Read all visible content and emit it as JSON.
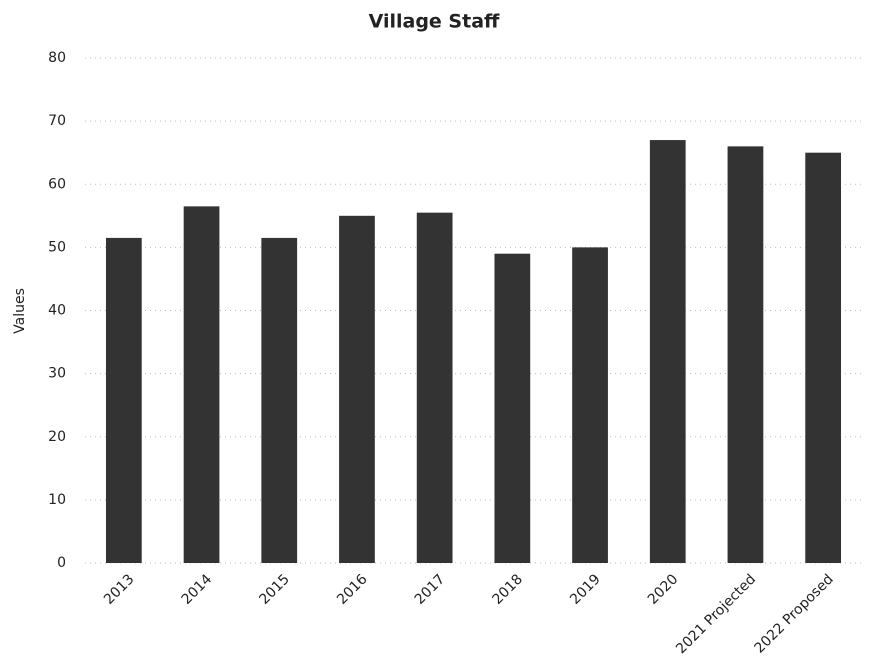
{
  "chart_data": {
    "type": "bar",
    "title": "Village Staff",
    "y_label": "Values",
    "categories": [
      "2013",
      "2014",
      "2015",
      "2016",
      "2017",
      "2018",
      "2019",
      "2020",
      "2021 Projected",
      "2022 Proposed"
    ],
    "values": [
      51.5,
      56.5,
      51.5,
      55,
      55.5,
      49,
      50,
      67,
      66,
      65
    ],
    "color": "#333333",
    "ylim": [
      0,
      80
    ],
    "yticks": [
      0,
      10,
      20,
      30,
      40,
      50,
      60,
      70,
      80
    ],
    "grid": true
  }
}
